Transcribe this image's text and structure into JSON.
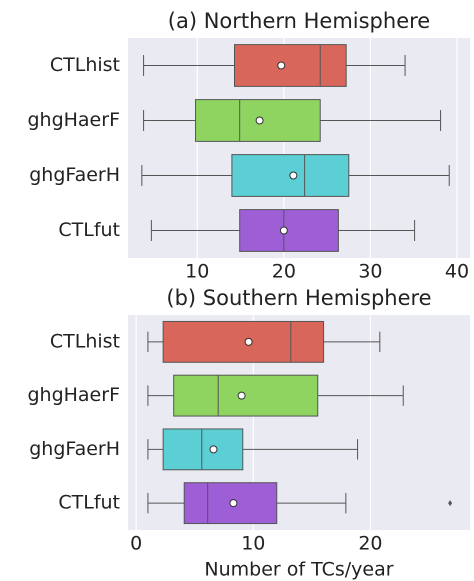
{
  "chart_data": [
    {
      "type": "box",
      "title": "(a) Northern Hemisphere",
      "categories": [
        "CTLhist",
        "ghgHaerF",
        "ghgFaerH",
        "CTLfut"
      ],
      "colors": [
        "#d9665b",
        "#8fd461",
        "#5bcfd4",
        "#9e5ed6"
      ],
      "boxes": [
        {
          "whislo": 3.8,
          "q1": 14.3,
          "med": 24.2,
          "q3": 27.2,
          "whishi": 34,
          "mean": 19.7
        },
        {
          "whislo": 3.8,
          "q1": 9.8,
          "med": 14.9,
          "q3": 24.2,
          "whishi": 38.1,
          "mean": 17.2
        },
        {
          "whislo": 3.6,
          "q1": 14.0,
          "med": 22.4,
          "q3": 27.5,
          "whishi": 39.1,
          "mean": 21.1
        },
        {
          "whislo": 4.7,
          "q1": 14.9,
          "med": 20.0,
          "q3": 26.3,
          "whishi": 35.1,
          "mean": 20.0
        }
      ],
      "xlim": [
        2,
        41.5
      ],
      "xticks": [
        10,
        20,
        30,
        40
      ],
      "grid": true
    },
    {
      "type": "box",
      "title": "(b) Southern Hemisphere",
      "categories": [
        "CTLhist",
        "ghgHaerF",
        "ghgFaerH",
        "CTLfut"
      ],
      "colors": [
        "#d9665b",
        "#8fd461",
        "#5bcfd4",
        "#9e5ed6"
      ],
      "boxes": [
        {
          "whislo": 1,
          "q1": 2.3,
          "med": 13.2,
          "q3": 16,
          "whishi": 20.8,
          "mean": 9.6
        },
        {
          "whislo": 1,
          "q1": 3.2,
          "med": 7,
          "q3": 15.5,
          "whishi": 22.8,
          "mean": 9.0
        },
        {
          "whislo": 1,
          "q1": 2.3,
          "med": 5.6,
          "q3": 9.1,
          "whishi": 18.9,
          "mean": 6.6
        },
        {
          "whislo": 1,
          "q1": 4.1,
          "med": 6.1,
          "q3": 12,
          "whishi": 17.9,
          "mean": 8.3,
          "fliers": [
            26.8
          ]
        }
      ],
      "xlim": [
        -0.7,
        28.5
      ],
      "xticks": [
        0,
        10,
        20
      ],
      "grid": true,
      "xlabel": "Number of TCs/year"
    }
  ]
}
